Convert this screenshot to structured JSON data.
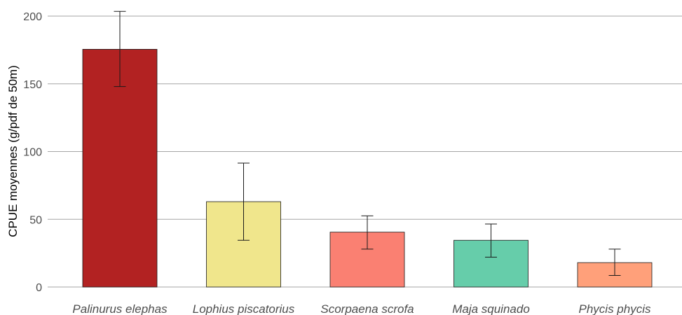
{
  "chart_data": {
    "type": "bar",
    "categories": [
      "Palinurus elephas",
      "Lophius piscatorius",
      "Scorpaena scrofa",
      "Maja squinado",
      "Phycis phycis"
    ],
    "values": [
      175.5,
      63,
      40.5,
      34.5,
      18
    ],
    "error_low": [
      148,
      34.5,
      28,
      22,
      8.5
    ],
    "error_high": [
      203.5,
      91.5,
      52.5,
      46.5,
      28
    ],
    "colors": [
      "#b22222",
      "#f0e68c",
      "#fa8072",
      "#66cdaa",
      "#ffa07a"
    ],
    "ylabel": "CPUE moyennes (g/pdf de 50m)",
    "xlabel": "",
    "ylim": [
      0,
      200
    ],
    "yticks": [
      0,
      50,
      100,
      150,
      200
    ],
    "grid": true,
    "legend": "none"
  }
}
